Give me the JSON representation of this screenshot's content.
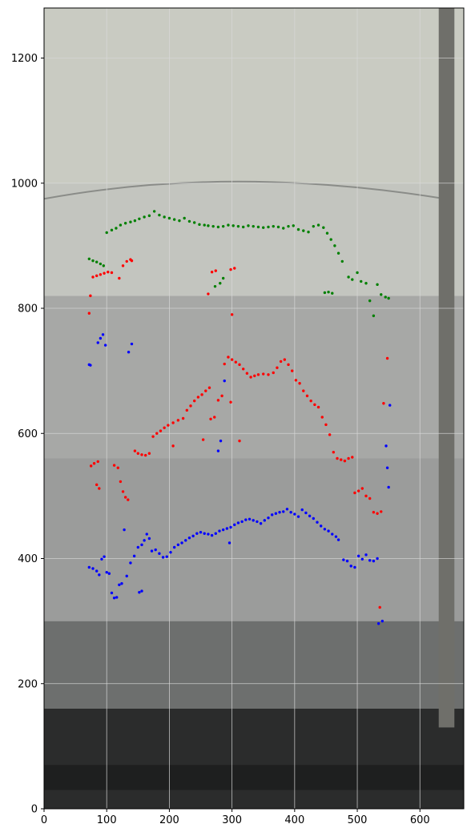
{
  "chart_data": {
    "type": "scatter",
    "title": "",
    "xlabel": "",
    "ylabel": "",
    "xlim": [
      0,
      670
    ],
    "ylim": [
      0,
      1280
    ],
    "grid": true,
    "legend": "none",
    "x_ticks": [
      0,
      100,
      200,
      300,
      400,
      500,
      600
    ],
    "y_ticks": [
      0,
      200,
      400,
      600,
      800,
      1000,
      1200
    ],
    "background": {
      "description_free": true,
      "photo_bands": [
        {
          "from": 1280,
          "to": 1000,
          "color": "#c9cbc2"
        },
        {
          "from": 1000,
          "to": 820,
          "color": "#c3c5bf"
        },
        {
          "from": 820,
          "to": 560,
          "color": "#a7a8a6"
        },
        {
          "from": 560,
          "to": 300,
          "color": "#9b9c9b"
        },
        {
          "from": 300,
          "to": 160,
          "color": "#6d6f6e"
        },
        {
          "from": 160,
          "to": 0,
          "color": "#2b2c2c"
        }
      ],
      "rod_color": "#6f6f6a"
    },
    "series": [
      {
        "color": "#008000",
        "points": [
          [
            72,
            879
          ],
          [
            78,
            876
          ],
          [
            84,
            874
          ],
          [
            90,
            871
          ],
          [
            95,
            868
          ],
          [
            100,
            921
          ],
          [
            108,
            925
          ],
          [
            115,
            928
          ],
          [
            122,
            933
          ],
          [
            130,
            936
          ],
          [
            138,
            938
          ],
          [
            145,
            940
          ],
          [
            152,
            943
          ],
          [
            160,
            946
          ],
          [
            168,
            948
          ],
          [
            176,
            955
          ],
          [
            184,
            949
          ],
          [
            192,
            946
          ],
          [
            200,
            944
          ],
          [
            208,
            942
          ],
          [
            216,
            940
          ],
          [
            224,
            944
          ],
          [
            232,
            939
          ],
          [
            240,
            937
          ],
          [
            248,
            934
          ],
          [
            256,
            933
          ],
          [
            262,
            932
          ],
          [
            270,
            931
          ],
          [
            278,
            930
          ],
          [
            286,
            931
          ],
          [
            294,
            933
          ],
          [
            302,
            932
          ],
          [
            310,
            931
          ],
          [
            318,
            930
          ],
          [
            326,
            932
          ],
          [
            334,
            931
          ],
          [
            342,
            930
          ],
          [
            350,
            929
          ],
          [
            358,
            930
          ],
          [
            366,
            931
          ],
          [
            374,
            930
          ],
          [
            382,
            928
          ],
          [
            390,
            931
          ],
          [
            398,
            932
          ],
          [
            406,
            926
          ],
          [
            414,
            924
          ],
          [
            422,
            922
          ],
          [
            430,
            931
          ],
          [
            438,
            933
          ],
          [
            446,
            929
          ],
          [
            452,
            920
          ],
          [
            458,
            910
          ],
          [
            464,
            900
          ],
          [
            470,
            888
          ],
          [
            476,
            875
          ],
          [
            448,
            825
          ],
          [
            454,
            826
          ],
          [
            460,
            824
          ],
          [
            486,
            850
          ],
          [
            492,
            846
          ],
          [
            500,
            857
          ],
          [
            506,
            843
          ],
          [
            514,
            840
          ],
          [
            520,
            812
          ],
          [
            526,
            788
          ],
          [
            532,
            838
          ],
          [
            538,
            822
          ],
          [
            545,
            818
          ],
          [
            550,
            816
          ],
          [
            273,
            835
          ],
          [
            281,
            840
          ],
          [
            286,
            848
          ]
        ]
      },
      {
        "color": "#ff0000",
        "points": [
          [
            72,
            792
          ],
          [
            74,
            820
          ],
          [
            78,
            850
          ],
          [
            84,
            852
          ],
          [
            90,
            854
          ],
          [
            96,
            856
          ],
          [
            102,
            858
          ],
          [
            108,
            857
          ],
          [
            120,
            848
          ],
          [
            126,
            868
          ],
          [
            132,
            875
          ],
          [
            138,
            878
          ],
          [
            140,
            876
          ],
          [
            262,
            823
          ],
          [
            268,
            858
          ],
          [
            274,
            860
          ],
          [
            298,
            862
          ],
          [
            304,
            864
          ],
          [
            75,
            548
          ],
          [
            80,
            552
          ],
          [
            86,
            555
          ],
          [
            84,
            518
          ],
          [
            88,
            512
          ],
          [
            112,
            549
          ],
          [
            118,
            545
          ],
          [
            122,
            523
          ],
          [
            126,
            507
          ],
          [
            130,
            498
          ],
          [
            134,
            494
          ],
          [
            145,
            572
          ],
          [
            150,
            568
          ],
          [
            156,
            566
          ],
          [
            162,
            565
          ],
          [
            168,
            568
          ],
          [
            174,
            595
          ],
          [
            180,
            600
          ],
          [
            186,
            604
          ],
          [
            192,
            609
          ],
          [
            198,
            613
          ],
          [
            206,
            617
          ],
          [
            214,
            621
          ],
          [
            222,
            624
          ],
          [
            228,
            637
          ],
          [
            234,
            644
          ],
          [
            240,
            652
          ],
          [
            246,
            658
          ],
          [
            252,
            662
          ],
          [
            258,
            668
          ],
          [
            264,
            673
          ],
          [
            266,
            623
          ],
          [
            272,
            626
          ],
          [
            278,
            653
          ],
          [
            284,
            660
          ],
          [
            288,
            711
          ],
          [
            294,
            722
          ],
          [
            300,
            718
          ],
          [
            306,
            714
          ],
          [
            312,
            710
          ],
          [
            318,
            703
          ],
          [
            324,
            696
          ],
          [
            330,
            690
          ],
          [
            336,
            692
          ],
          [
            342,
            694
          ],
          [
            350,
            695
          ],
          [
            358,
            694
          ],
          [
            366,
            697
          ],
          [
            372,
            705
          ],
          [
            378,
            715
          ],
          [
            384,
            718
          ],
          [
            390,
            710
          ],
          [
            396,
            700
          ],
          [
            402,
            685
          ],
          [
            408,
            680
          ],
          [
            414,
            668
          ],
          [
            420,
            660
          ],
          [
            426,
            652
          ],
          [
            432,
            646
          ],
          [
            438,
            642
          ],
          [
            444,
            626
          ],
          [
            450,
            614
          ],
          [
            456,
            598
          ],
          [
            462,
            570
          ],
          [
            468,
            560
          ],
          [
            474,
            558
          ],
          [
            480,
            556
          ],
          [
            486,
            560
          ],
          [
            492,
            562
          ],
          [
            496,
            505
          ],
          [
            502,
            508
          ],
          [
            508,
            512
          ],
          [
            514,
            500
          ],
          [
            520,
            496
          ],
          [
            526,
            474
          ],
          [
            532,
            472
          ],
          [
            538,
            475
          ],
          [
            300,
            790
          ],
          [
            298,
            650
          ],
          [
            312,
            588
          ],
          [
            254,
            590
          ],
          [
            206,
            580
          ],
          [
            536,
            322
          ],
          [
            542,
            648
          ],
          [
            548,
            720
          ]
        ]
      },
      {
        "color": "#0000ff",
        "points": [
          [
            72,
            710
          ],
          [
            74,
            709
          ],
          [
            86,
            745
          ],
          [
            90,
            752
          ],
          [
            94,
            758
          ],
          [
            98,
            741
          ],
          [
            135,
            730
          ],
          [
            140,
            743
          ],
          [
            72,
            386
          ],
          [
            78,
            384
          ],
          [
            84,
            380
          ],
          [
            88,
            374
          ],
          [
            92,
            399
          ],
          [
            96,
            403
          ],
          [
            100,
            378
          ],
          [
            104,
            376
          ],
          [
            108,
            345
          ],
          [
            112,
            337
          ],
          [
            116,
            338
          ],
          [
            120,
            358
          ],
          [
            124,
            360
          ],
          [
            128,
            446
          ],
          [
            132,
            372
          ],
          [
            138,
            393
          ],
          [
            144,
            404
          ],
          [
            150,
            418
          ],
          [
            156,
            422
          ],
          [
            160,
            429
          ],
          [
            164,
            439
          ],
          [
            168,
            432
          ],
          [
            172,
            412
          ],
          [
            178,
            414
          ],
          [
            184,
            408
          ],
          [
            190,
            402
          ],
          [
            196,
            403
          ],
          [
            202,
            410
          ],
          [
            208,
            418
          ],
          [
            214,
            422
          ],
          [
            220,
            425
          ],
          [
            226,
            429
          ],
          [
            232,
            433
          ],
          [
            238,
            436
          ],
          [
            244,
            440
          ],
          [
            250,
            442
          ],
          [
            256,
            440
          ],
          [
            262,
            439
          ],
          [
            268,
            437
          ],
          [
            274,
            440
          ],
          [
            280,
            444
          ],
          [
            286,
            446
          ],
          [
            292,
            448
          ],
          [
            298,
            450
          ],
          [
            304,
            454
          ],
          [
            310,
            457
          ],
          [
            316,
            459
          ],
          [
            322,
            462
          ],
          [
            328,
            463
          ],
          [
            334,
            461
          ],
          [
            340,
            459
          ],
          [
            346,
            456
          ],
          [
            352,
            461
          ],
          [
            358,
            465
          ],
          [
            364,
            470
          ],
          [
            370,
            472
          ],
          [
            376,
            474
          ],
          [
            382,
            475
          ],
          [
            388,
            479
          ],
          [
            394,
            474
          ],
          [
            400,
            471
          ],
          [
            406,
            467
          ],
          [
            412,
            478
          ],
          [
            418,
            473
          ],
          [
            424,
            468
          ],
          [
            430,
            464
          ],
          [
            436,
            458
          ],
          [
            442,
            452
          ],
          [
            448,
            447
          ],
          [
            454,
            444
          ],
          [
            460,
            439
          ],
          [
            466,
            435
          ],
          [
            470,
            430
          ],
          [
            478,
            398
          ],
          [
            484,
            396
          ],
          [
            490,
            388
          ],
          [
            496,
            386
          ],
          [
            502,
            404
          ],
          [
            508,
            399
          ],
          [
            514,
            406
          ],
          [
            520,
            397
          ],
          [
            526,
            396
          ],
          [
            532,
            400
          ],
          [
            152,
            346
          ],
          [
            156,
            348
          ],
          [
            278,
            572
          ],
          [
            282,
            588
          ],
          [
            288,
            684
          ],
          [
            296,
            425
          ],
          [
            534,
            296
          ],
          [
            540,
            300
          ],
          [
            546,
            580
          ],
          [
            550,
            514
          ],
          [
            548,
            545
          ],
          [
            552,
            645
          ]
        ]
      }
    ]
  }
}
